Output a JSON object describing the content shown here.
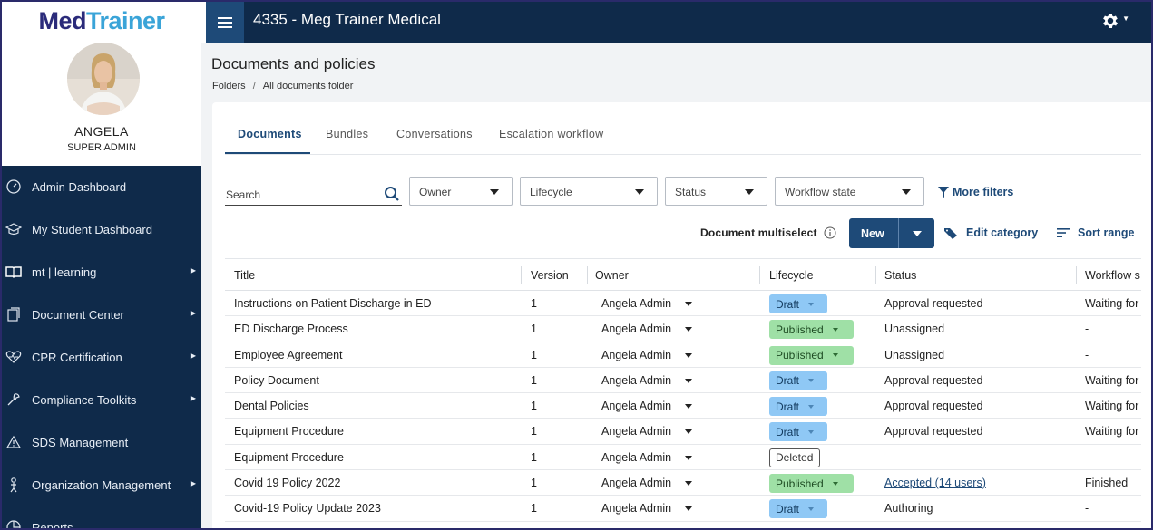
{
  "brand": {
    "logo_part1": "Med",
    "logo_part2": "Trainer"
  },
  "user": {
    "name": "ANGELA",
    "role": "SUPER ADMIN"
  },
  "sidebar": {
    "items": [
      {
        "label": "Admin Dashboard",
        "icon": "dashboard-icon",
        "has_submenu": false
      },
      {
        "label": "My Student Dashboard",
        "icon": "graduation-cap-icon",
        "has_submenu": false
      },
      {
        "label": "mt | learning",
        "icon": "book-icon",
        "has_submenu": true
      },
      {
        "label": "Document Center",
        "icon": "documents-icon",
        "has_submenu": true
      },
      {
        "label": "CPR Certification",
        "icon": "heart-pulse-icon",
        "has_submenu": true
      },
      {
        "label": "Compliance Toolkits",
        "icon": "tools-icon",
        "has_submenu": true
      },
      {
        "label": "SDS Management",
        "icon": "warning-icon",
        "has_submenu": false
      },
      {
        "label": "Organization Management",
        "icon": "org-person-icon",
        "has_submenu": true
      },
      {
        "label": "Reports",
        "icon": "reports-icon",
        "has_submenu": false
      }
    ]
  },
  "topbar": {
    "title": "4335 - Meg Trainer Medical"
  },
  "page": {
    "title": "Documents and policies",
    "breadcrumb": [
      "Folders",
      "All documents folder"
    ]
  },
  "tabs": [
    "Documents",
    "Bundles",
    "Conversations",
    "Escalation workflow"
  ],
  "filters": {
    "search_label": "Search",
    "owner": "Owner",
    "lifecycle": "Lifecycle",
    "status": "Status",
    "workflow_state": "Workflow state",
    "more_filters": "More filters"
  },
  "actions": {
    "multiselect_label": "Document multiselect",
    "new_label": "New",
    "edit_category": "Edit category",
    "sort_range": "Sort range"
  },
  "table": {
    "headers": [
      "Title",
      "Version",
      "Owner",
      "Lifecycle",
      "Status",
      "Workflow s"
    ],
    "rows": [
      {
        "title": "Instructions on Patient Discharge in ED",
        "version": "1",
        "owner": "Angela Admin",
        "lifecycle": "Draft",
        "lifecycle_type": "draft",
        "status": "Approval requested",
        "status_link": false,
        "workflow": "Waiting for"
      },
      {
        "title": "ED Discharge Process",
        "version": "1",
        "owner": "Angela Admin",
        "lifecycle": "Published",
        "lifecycle_type": "published",
        "status": "Unassigned",
        "status_link": false,
        "workflow": "-"
      },
      {
        "title": "Employee Agreement",
        "version": "1",
        "owner": "Angela Admin",
        "lifecycle": "Published",
        "lifecycle_type": "published",
        "status": "Unassigned",
        "status_link": false,
        "workflow": "-"
      },
      {
        "title": "Policy Document",
        "version": "1",
        "owner": "Angela Admin",
        "lifecycle": "Draft",
        "lifecycle_type": "draft",
        "status": "Approval requested",
        "status_link": false,
        "workflow": "Waiting for"
      },
      {
        "title": "Dental Policies",
        "version": "1",
        "owner": "Angela Admin",
        "lifecycle": "Draft",
        "lifecycle_type": "draft",
        "status": "Approval requested",
        "status_link": false,
        "workflow": "Waiting for"
      },
      {
        "title": "Equipment Procedure",
        "version": "1",
        "owner": "Angela Admin",
        "lifecycle": "Draft",
        "lifecycle_type": "draft",
        "status": "Approval requested",
        "status_link": false,
        "workflow": "Waiting for"
      },
      {
        "title": "Equipment Procedure",
        "version": "1",
        "owner": "Angela Admin",
        "lifecycle": "Deleted",
        "lifecycle_type": "deleted",
        "status": "-",
        "status_link": false,
        "workflow": "-"
      },
      {
        "title": "Covid 19 Policy 2022",
        "version": "1",
        "owner": "Angela Admin",
        "lifecycle": "Published",
        "lifecycle_type": "published",
        "status": "Accepted (14 users)",
        "status_link": true,
        "workflow": "Finished"
      },
      {
        "title": "Covid-19 Policy Update 2023",
        "version": "1",
        "owner": "Angela Admin",
        "lifecycle": "Draft",
        "lifecycle_type": "draft",
        "status": "Authoring",
        "status_link": false,
        "workflow": "-"
      }
    ]
  },
  "colors": {
    "navy": "#0f2a4a",
    "accent": "#1e4a78",
    "draft": "#8fc8f5",
    "published": "#9fe0a6"
  }
}
